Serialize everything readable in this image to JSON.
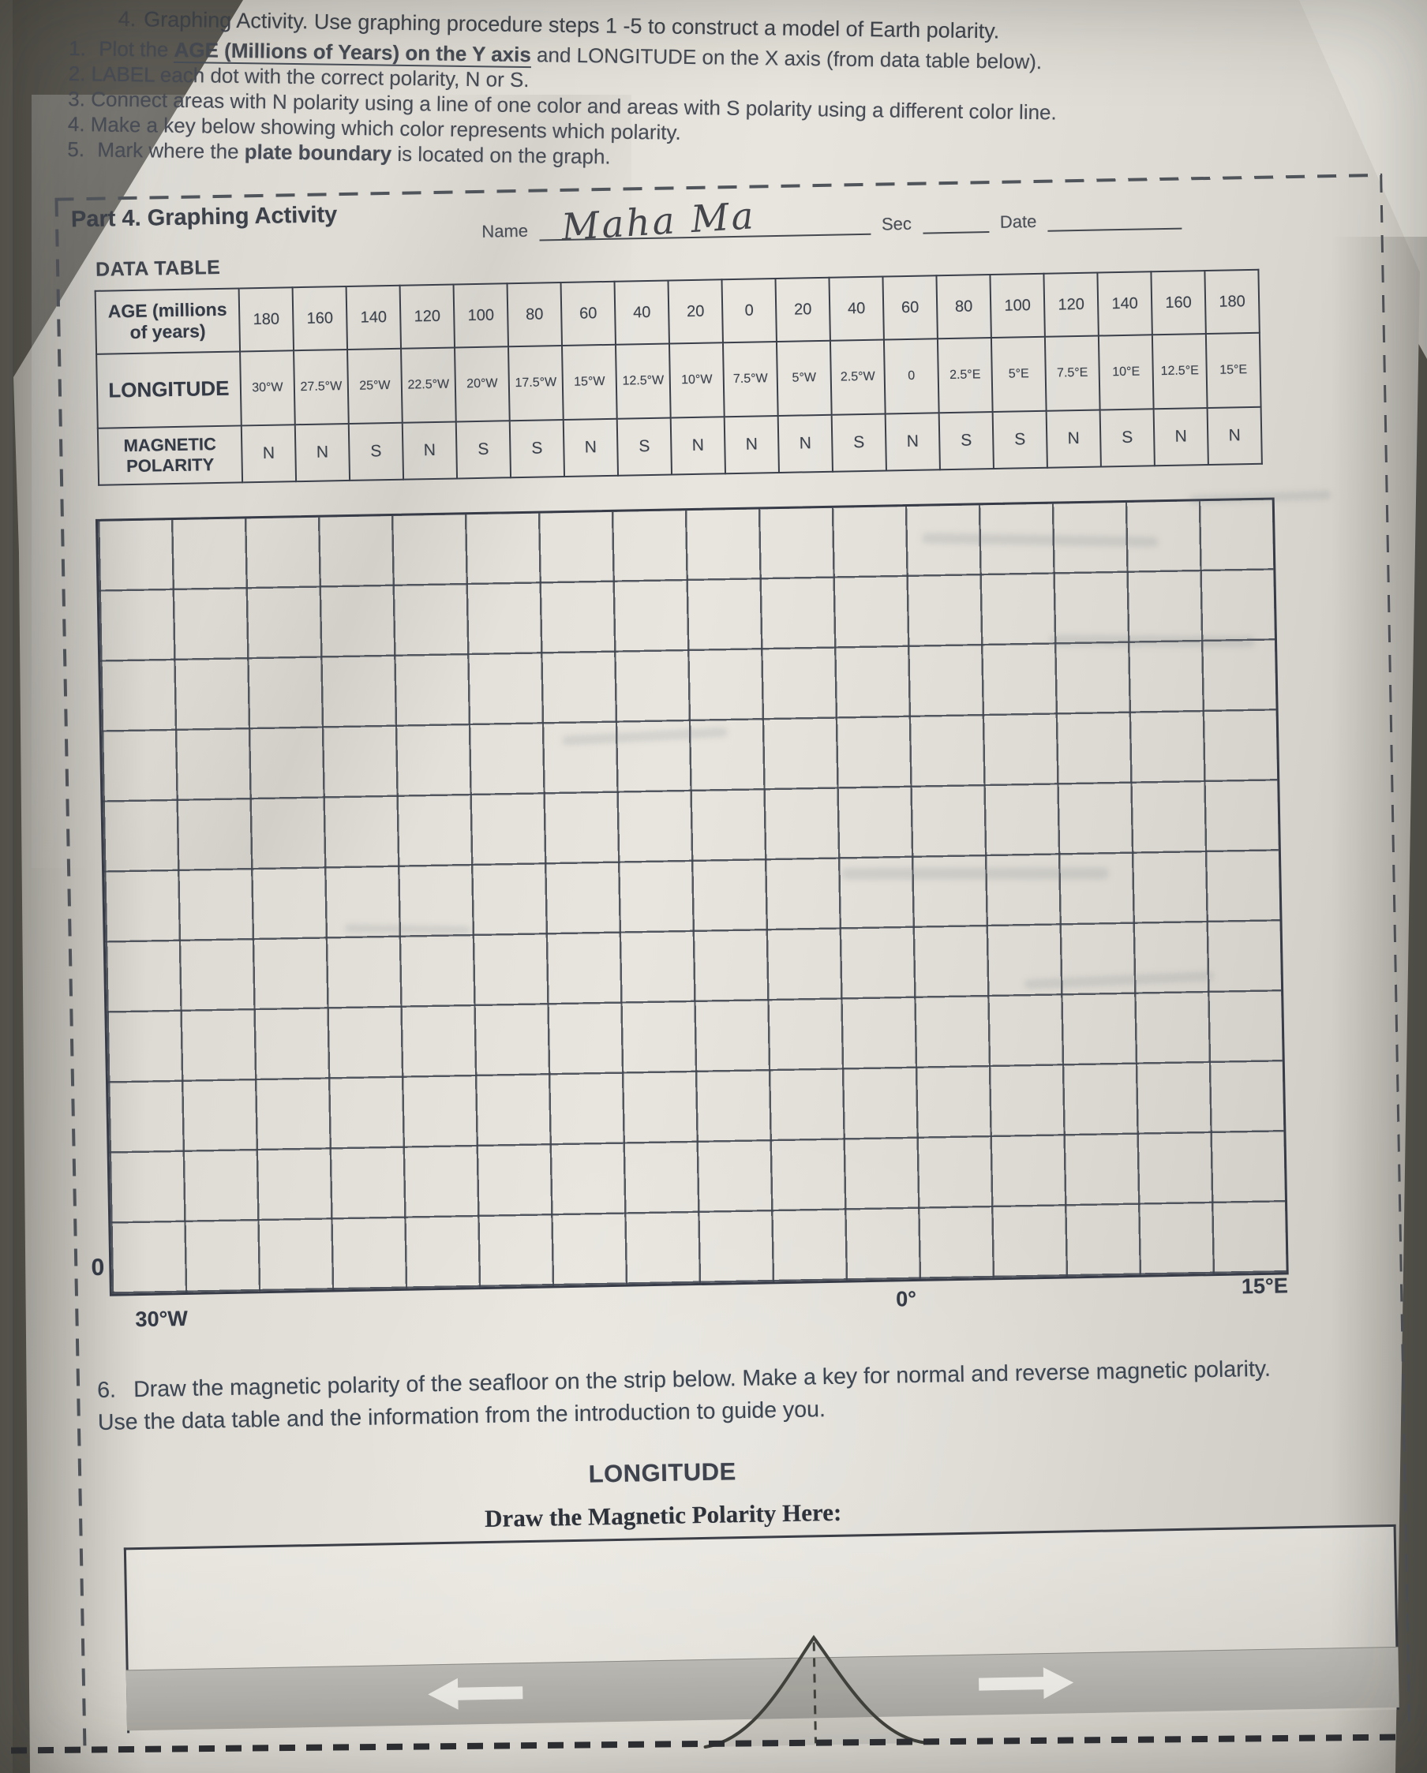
{
  "instructions": {
    "title_num": "4.",
    "title": "Graphing Activity. Use graphing procedure steps 1 -5 to construct a model of Earth polarity.",
    "s1_num": "1.",
    "s1_pre": "Plot the ",
    "s1_u": "AGE (Millions of Years) on the Y axis",
    "s1_post": " and LONGITUDE on the X axis (from data table below).",
    "s2": "2. LABEL each dot with the correct polarity, N or S.",
    "s3": "3. Connect areas with N polarity using a line of one color and areas with S polarity using a different color line.",
    "s4": "4. Make a key below showing which color represents which polarity.",
    "s5_num": "5.",
    "s5_pre": "Mark where the ",
    "s5_b": "plate boundary",
    "s5_post": " is located on the graph."
  },
  "part4": {
    "title": "Part 4. Graphing Activity",
    "name_label": "Name",
    "name_value": "Maha Ma",
    "sec_label": "Sec",
    "date_label": "Date",
    "data_table_label": "DATA TABLE"
  },
  "table": {
    "row1_label": "AGE (millions of years)",
    "row2_label": "LONGITUDE",
    "row3_label": "MAGNETIC POLARITY",
    "age": [
      "180",
      "160",
      "140",
      "120",
      "100",
      "80",
      "60",
      "40",
      "20",
      "0",
      "20",
      "40",
      "60",
      "80",
      "100",
      "120",
      "140",
      "160",
      "180"
    ],
    "longitude": [
      "30°W",
      "27.5°W",
      "25°W",
      "22.5°W",
      "20°W",
      "17.5°W",
      "15°W",
      "12.5°W",
      "10°W",
      "7.5°W",
      "5°W",
      "2.5°W",
      "0",
      "2.5°E",
      "5°E",
      "7.5°E",
      "10°E",
      "12.5°E",
      "15°E"
    ],
    "polarity": [
      "N",
      "N",
      "S",
      "N",
      "S",
      "S",
      "N",
      "S",
      "N",
      "N",
      "N",
      "S",
      "N",
      "S",
      "S",
      "N",
      "S",
      "N",
      "N"
    ]
  },
  "graph": {
    "origin_label": "0",
    "x_left_label": "30°W",
    "x_zero_label": "0°",
    "x_right_label": "15°E"
  },
  "section6": {
    "num": "6.",
    "text": "Draw the magnetic polarity of the seafloor on the strip below. Make a key for normal and reverse magnetic polarity. Use the data table and the information from the introduction to guide you."
  },
  "strip": {
    "longitude_label": "LONGITUDE",
    "draw_here_label": "Draw the Magnetic Polarity Here:"
  },
  "colors": {
    "paper": "#e8e5de",
    "ink": "#464b55",
    "grid_line": "#3e434e",
    "seafloor_band": "#b3b1ab",
    "photo_background": "#5d5b54"
  }
}
